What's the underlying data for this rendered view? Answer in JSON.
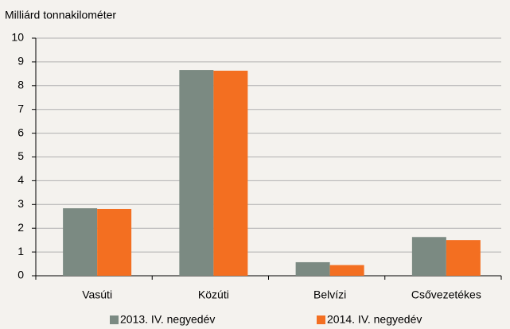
{
  "chart_data": {
    "type": "bar",
    "y_axis_label": "Milliárd tonnakilométer",
    "categories": [
      "Vasúti",
      "Közúti",
      "Belvízi",
      "Csővezetékes"
    ],
    "series": [
      {
        "name": "2013. IV. negyedév",
        "color": "#7b8a82",
        "values": [
          2.84,
          8.66,
          0.57,
          1.63
        ]
      },
      {
        "name": "2014. IV. negyedév",
        "color": "#f36f21",
        "values": [
          2.81,
          8.63,
          0.45,
          1.5
        ]
      }
    ],
    "ylim": [
      0,
      10
    ],
    "yticks": [
      0,
      1,
      2,
      3,
      4,
      5,
      6,
      7,
      8,
      9,
      10
    ],
    "grid": true,
    "legend": "bottom"
  }
}
